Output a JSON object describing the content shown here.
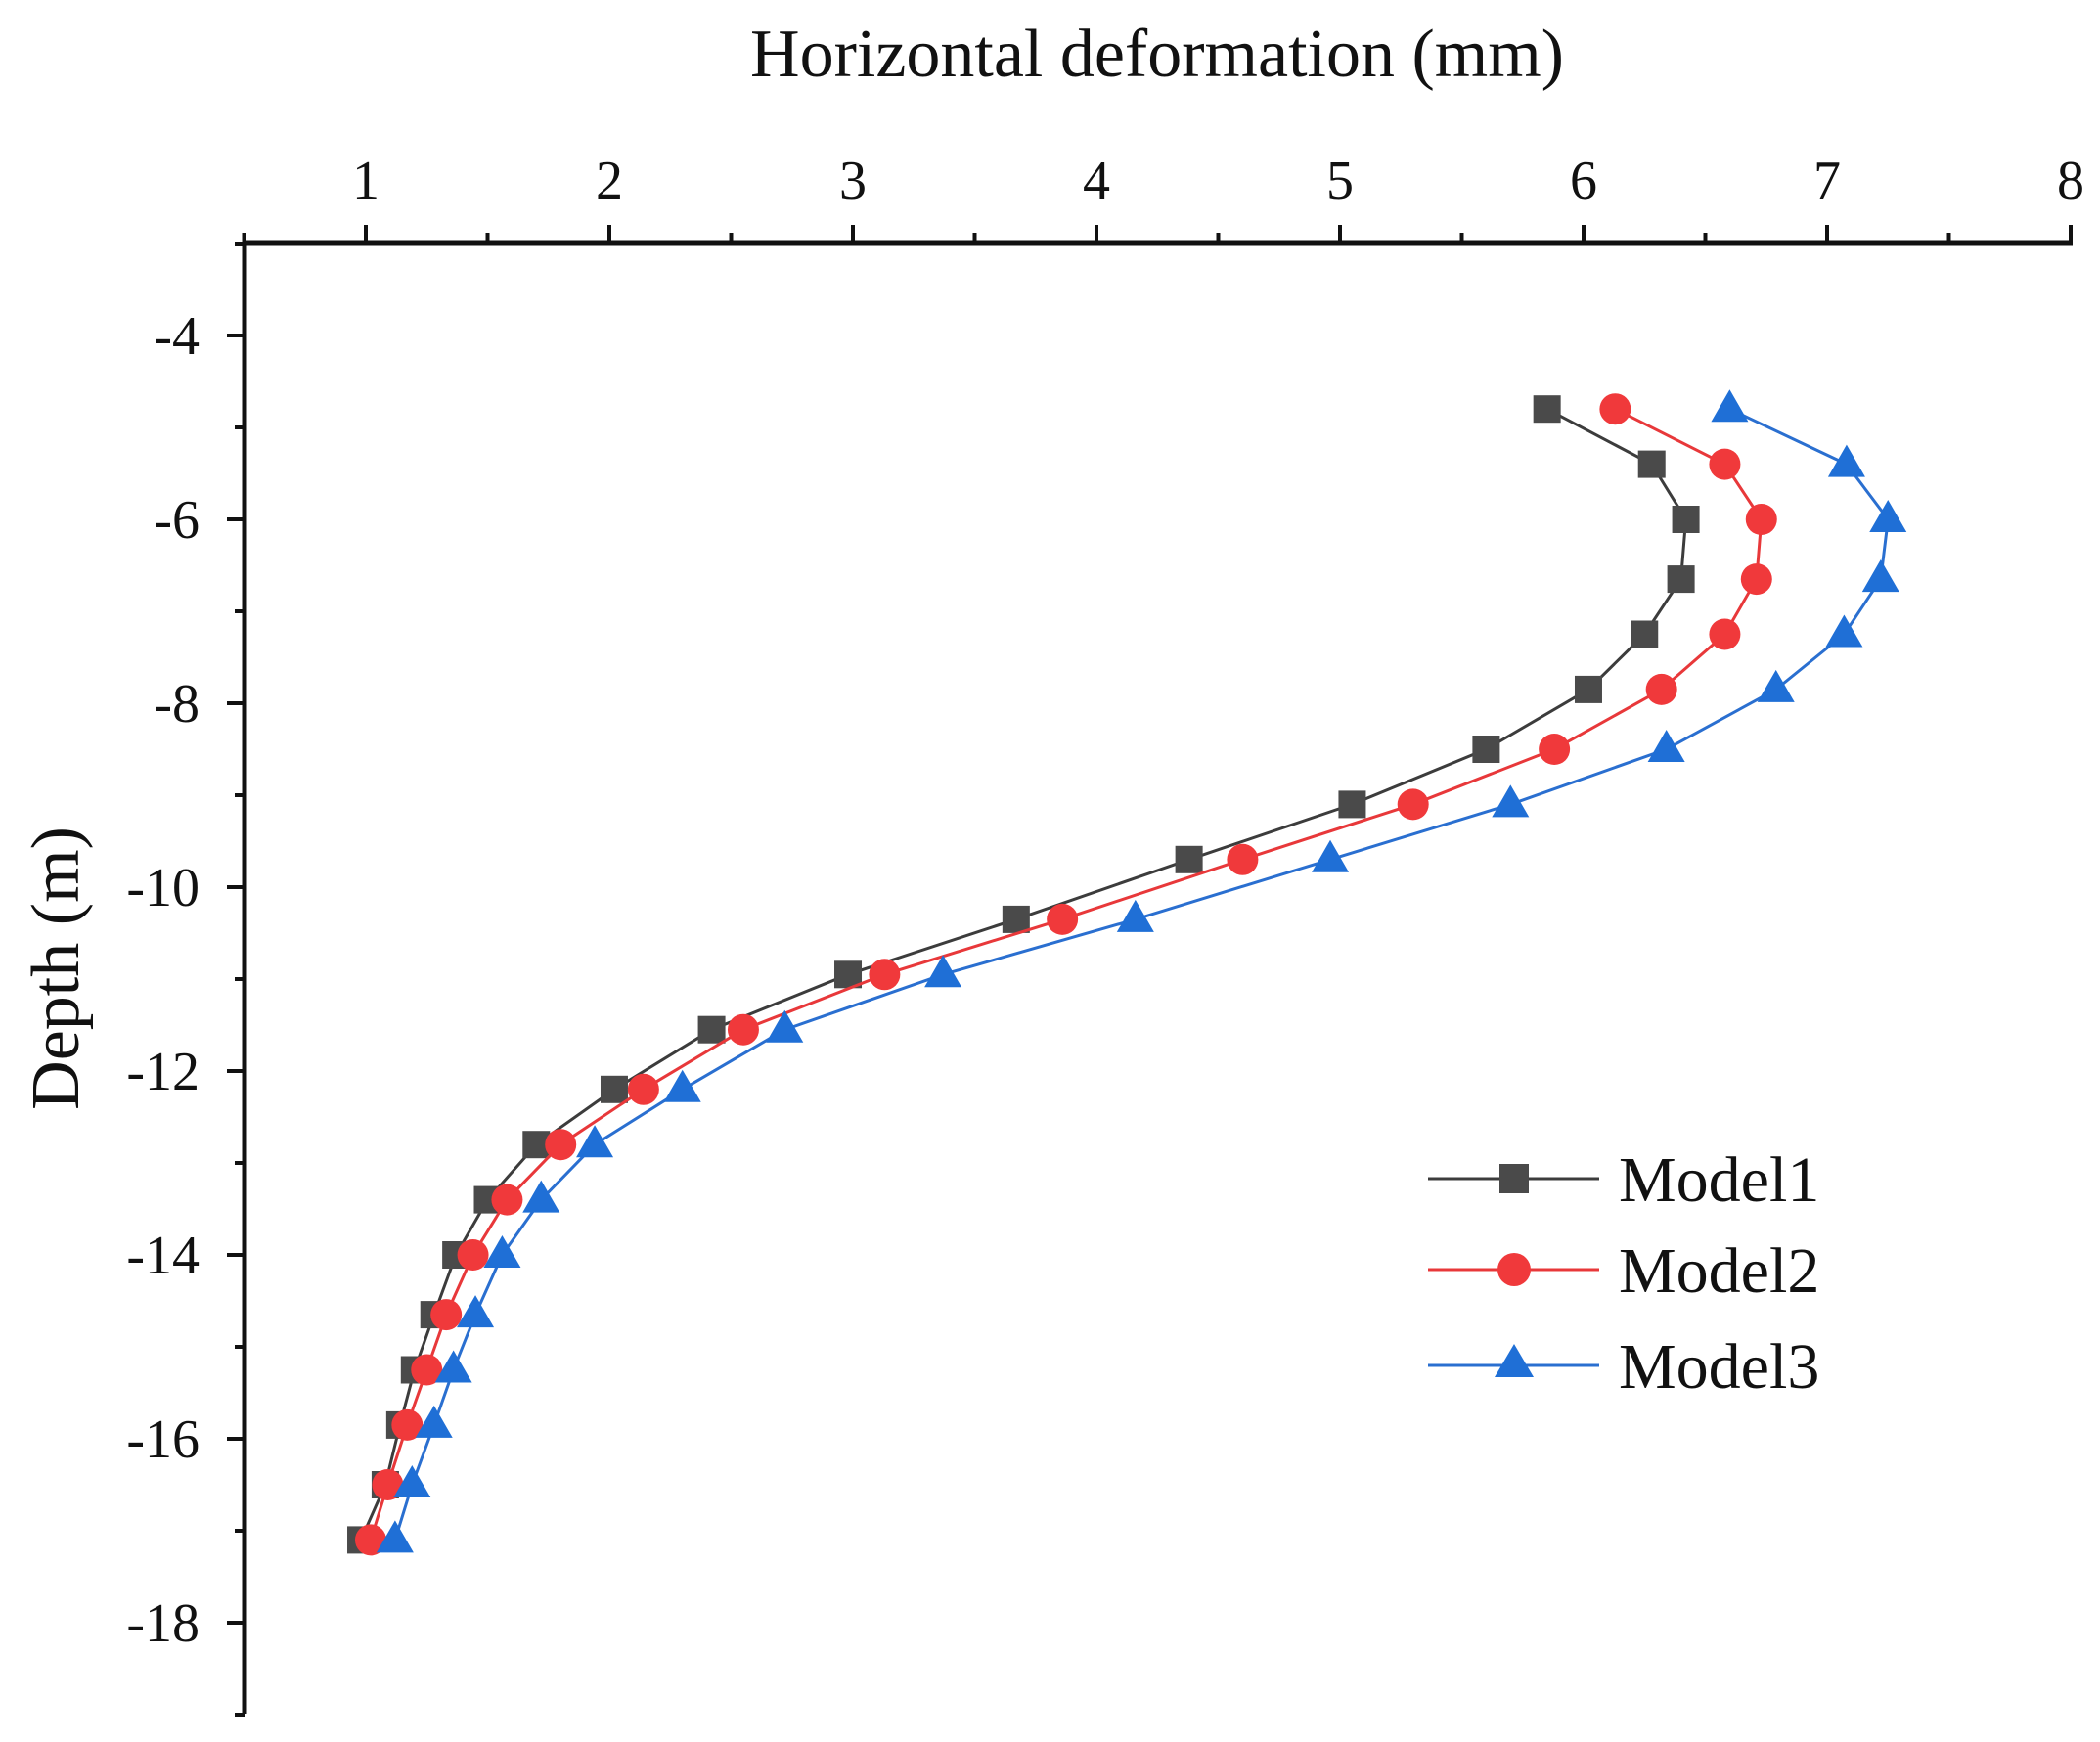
{
  "chart_data": {
    "type": "line",
    "title": "",
    "xlabel": "Horizontal deformation (mm)",
    "ylabel": "Depth (m)",
    "x_axis_position": "top",
    "xlim": [
      0.5,
      8
    ],
    "ylim": [
      -19,
      -3
    ],
    "x_ticks": [
      1,
      2,
      3,
      4,
      5,
      6,
      7,
      8
    ],
    "y_ticks": [
      -4,
      -6,
      -8,
      -10,
      -12,
      -14,
      -16,
      -18
    ],
    "x_tick_labels": [
      "1",
      "2",
      "3",
      "4",
      "5",
      "6",
      "7",
      "8"
    ],
    "y_tick_labels": [
      "-4",
      "-6",
      "-8",
      "-10",
      "-12",
      "-14",
      "-16",
      "-18"
    ],
    "depths": [
      -4.8,
      -5.4,
      -6.0,
      -6.65,
      -7.25,
      -7.85,
      -8.5,
      -9.1,
      -9.7,
      -10.35,
      -10.95,
      -11.55,
      -12.2,
      -12.8,
      -13.4,
      -14.0,
      -14.65,
      -15.25,
      -15.85,
      -16.5,
      -17.1
    ],
    "series": [
      {
        "name": "Model1",
        "marker": "square",
        "color": "#4a4a4a",
        "line_color": "#3c3c3c",
        "x": [
          5.85,
          6.28,
          6.42,
          6.4,
          6.25,
          6.02,
          5.6,
          5.05,
          4.38,
          3.67,
          2.98,
          2.42,
          2.02,
          1.7,
          1.5,
          1.37,
          1.28,
          1.2,
          1.14,
          1.08,
          0.98
        ]
      },
      {
        "name": "Model2",
        "marker": "circle",
        "color": "#f0393b",
        "line_color": "#e8383a",
        "x": [
          6.13,
          6.58,
          6.73,
          6.71,
          6.58,
          6.32,
          5.88,
          5.3,
          4.6,
          3.86,
          3.13,
          2.55,
          2.14,
          1.8,
          1.58,
          1.44,
          1.33,
          1.25,
          1.17,
          1.09,
          1.02
        ]
      },
      {
        "name": "Model3",
        "marker": "triangle",
        "color": "#1f6fd6",
        "line_color": "#2a6fd0",
        "x": [
          6.6,
          7.08,
          7.25,
          7.22,
          7.07,
          6.79,
          6.34,
          5.7,
          4.96,
          4.16,
          3.37,
          2.72,
          2.3,
          1.94,
          1.72,
          1.56,
          1.45,
          1.36,
          1.28,
          1.19,
          1.12
        ]
      }
    ],
    "legend": {
      "placement": "lower-right"
    }
  }
}
